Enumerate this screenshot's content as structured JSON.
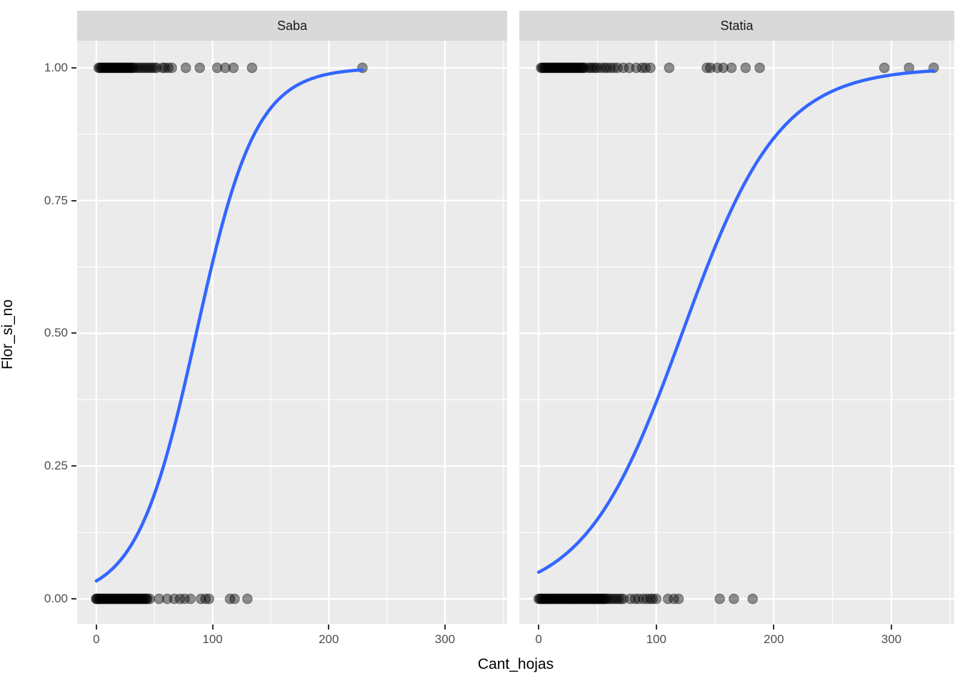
{
  "chart_data": {
    "type": "scatter",
    "subtype": "faceted binary scatter with logistic fit curves",
    "title": "",
    "xlabel": "Cant_hojas",
    "ylabel": "Flor_si_no",
    "legend": "none",
    "grid": "on",
    "x_ticks": [
      0,
      100,
      200,
      300
    ],
    "x_minor_ticks": [
      50,
      150,
      250,
      350
    ],
    "y_ticks": [
      {
        "value": 1.0,
        "label": "1.00"
      },
      {
        "value": 0.75,
        "label": "0.75"
      },
      {
        "value": 0.5,
        "label": "0.50"
      },
      {
        "value": 0.25,
        "label": "0.25"
      },
      {
        "value": 0.0,
        "label": "0.00"
      }
    ],
    "y_minor_ticks": [
      0.125,
      0.375,
      0.625,
      0.875
    ],
    "xlim": [
      -16.5,
      353.5
    ],
    "ylim": [
      -0.047,
      1.051
    ],
    "colors": {
      "fit_line": "#3366FF",
      "panel_background": "#EBEBEB",
      "strip_background": "#D9D9D9",
      "gridline": "#FFFFFF",
      "point": "#000000",
      "point_alpha": 0.42,
      "tick_mark": "#333333",
      "tick_label": "#4D4D4D"
    },
    "facets": [
      {
        "label": "Saba",
        "fit": {
          "model": "logistic",
          "midpoint": 86,
          "slope": 0.039,
          "x_start": 0,
          "x_end": 229
        },
        "points_y1_x": [
          2,
          3,
          4,
          5,
          6,
          7,
          8,
          9,
          10,
          11,
          12,
          13,
          14,
          15,
          16,
          17,
          18,
          19,
          20,
          21,
          22,
          23,
          24,
          25,
          26,
          27,
          28,
          29,
          30,
          31,
          32,
          34,
          36,
          38,
          40,
          42,
          44,
          46,
          48,
          50,
          52,
          57,
          59,
          62,
          65,
          77,
          89,
          104,
          111,
          118,
          134,
          229
        ],
        "points_y0_x": [
          0,
          0,
          1,
          2,
          3,
          4,
          5,
          6,
          7,
          8,
          9,
          10,
          11,
          12,
          13,
          14,
          15,
          16,
          17,
          18,
          19,
          20,
          21,
          22,
          23,
          24,
          25,
          26,
          27,
          28,
          29,
          30,
          31,
          32,
          33,
          34,
          35,
          36,
          37,
          38,
          39,
          40,
          41,
          42,
          43,
          44,
          46,
          54,
          61,
          67,
          72,
          76,
          81,
          90,
          94,
          97,
          115,
          119,
          130
        ]
      },
      {
        "label": "Statia",
        "fit": {
          "model": "logistic",
          "midpoint": 122,
          "slope": 0.0241,
          "x_start": 0,
          "x_end": 336
        },
        "points_y1_x": [
          2,
          3,
          4,
          5,
          6,
          7,
          8,
          9,
          10,
          11,
          12,
          13,
          14,
          15,
          16,
          17,
          18,
          19,
          20,
          21,
          22,
          23,
          24,
          25,
          26,
          27,
          28,
          29,
          30,
          31,
          32,
          33,
          34,
          35,
          36,
          37,
          38,
          39,
          42,
          44,
          46,
          48,
          50,
          53,
          56,
          58,
          61,
          64,
          67,
          72,
          77,
          83,
          88,
          91,
          95,
          111,
          143,
          146,
          152,
          157,
          164,
          176,
          188,
          294,
          315,
          336
        ],
        "points_y0_x": [
          0,
          1,
          2,
          3,
          4,
          5,
          6,
          7,
          8,
          9,
          10,
          11,
          12,
          13,
          14,
          15,
          16,
          17,
          18,
          19,
          20,
          21,
          22,
          23,
          24,
          25,
          26,
          27,
          28,
          29,
          30,
          31,
          32,
          33,
          34,
          35,
          36,
          37,
          38,
          39,
          40,
          41,
          42,
          43,
          44,
          45,
          46,
          47,
          48,
          49,
          50,
          51,
          52,
          53,
          54,
          55,
          56,
          57,
          58,
          60,
          62,
          64,
          66,
          68,
          70,
          72,
          78,
          82,
          85,
          89,
          92,
          95,
          97,
          100,
          110,
          115,
          119,
          154,
          166,
          182
        ]
      }
    ]
  }
}
